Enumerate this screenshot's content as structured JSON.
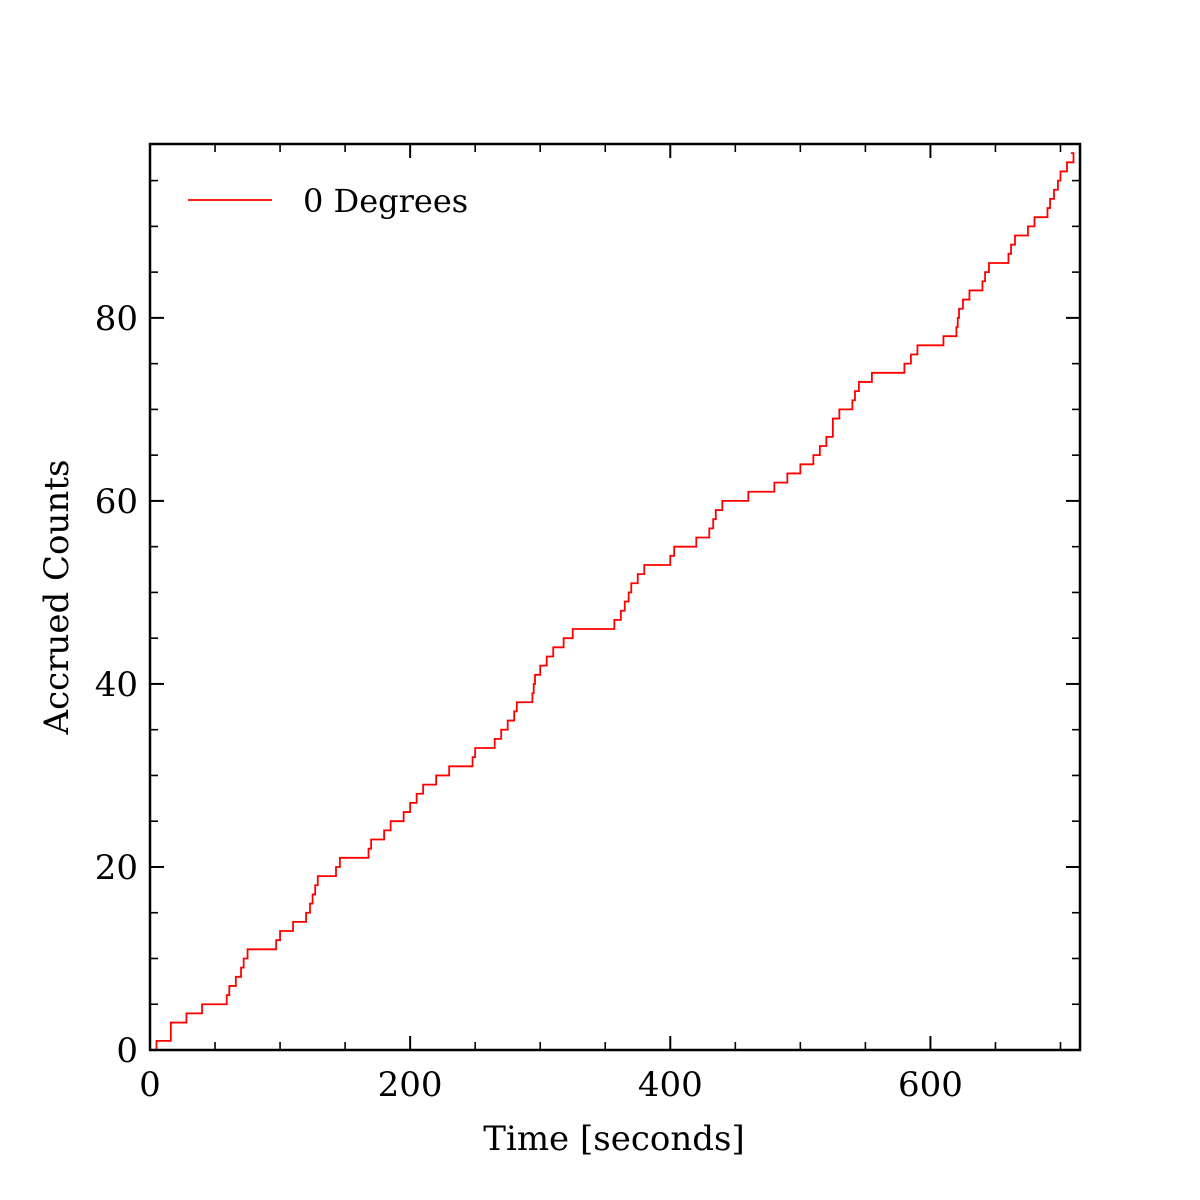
{
  "chart_data": {
    "type": "line",
    "title": "",
    "xlabel": "Time [seconds]",
    "ylabel": "Accrued Counts",
    "xlim": [
      0,
      715
    ],
    "ylim": [
      0,
      99
    ],
    "x_ticks": [
      0,
      200,
      400,
      600
    ],
    "x_minor_ticks": [
      50,
      100,
      150,
      250,
      300,
      350,
      450,
      500,
      550,
      650,
      700
    ],
    "y_ticks": [
      0,
      20,
      40,
      60,
      80
    ],
    "y_minor_ticks": [
      5,
      10,
      15,
      25,
      30,
      35,
      45,
      50,
      55,
      65,
      70,
      75,
      85,
      90,
      95
    ],
    "x_tick_labels": [
      "0",
      "200",
      "400",
      "600"
    ],
    "y_tick_labels": [
      "0",
      "20",
      "40",
      "60",
      "80"
    ],
    "grid": false,
    "legend_position": "top-left",
    "series": [
      {
        "name": "0 Degrees",
        "color": "#ff0000",
        "step": "post",
        "x": [
          0,
          5,
          16,
          28,
          40,
          59,
          61,
          66,
          70,
          72,
          75,
          78,
          97,
          100,
          110,
          120,
          123,
          125,
          127,
          129,
          143,
          146,
          150,
          168,
          170,
          180,
          185,
          195,
          200,
          205,
          210,
          220,
          230,
          248,
          250,
          265,
          270,
          275,
          280,
          282,
          285,
          294,
          295,
          296,
          300,
          305,
          310,
          318,
          325,
          335,
          337,
          340,
          357,
          362,
          365,
          368,
          370,
          372,
          375,
          380,
          382,
          400,
          403,
          410,
          420,
          430,
          433,
          435,
          437,
          440,
          460,
          470,
          480,
          485,
          490,
          500,
          510,
          515,
          520,
          525,
          530,
          540,
          542,
          545,
          555,
          575,
          580,
          585,
          590,
          610,
          615,
          620,
          621,
          622,
          625,
          630,
          640,
          642,
          645,
          660,
          662,
          665,
          675,
          680,
          690,
          692,
          695,
          698,
          700,
          705,
          710
        ],
        "y": [
          0,
          1,
          3,
          4,
          5,
          6,
          7,
          8,
          9,
          10,
          11,
          11,
          12,
          13,
          14,
          15,
          16,
          17,
          18,
          19,
          20,
          21,
          21,
          22,
          23,
          24,
          25,
          26,
          27,
          28,
          29,
          30,
          31,
          32,
          33,
          34,
          35,
          36,
          37,
          38,
          38,
          39,
          40,
          41,
          42,
          43,
          44,
          45,
          46,
          46,
          46,
          46,
          47,
          48,
          49,
          50,
          51,
          51,
          52,
          53,
          53,
          54,
          55,
          55,
          56,
          57,
          58,
          59,
          59,
          60,
          61,
          61,
          62,
          62,
          63,
          64,
          65,
          66,
          67,
          69,
          70,
          71,
          72,
          73,
          74,
          74,
          75,
          76,
          77,
          78,
          78,
          79,
          80,
          81,
          82,
          83,
          84,
          85,
          86,
          87,
          88,
          89,
          90,
          91,
          92,
          93,
          94,
          95,
          96,
          97,
          98
        ]
      }
    ]
  }
}
